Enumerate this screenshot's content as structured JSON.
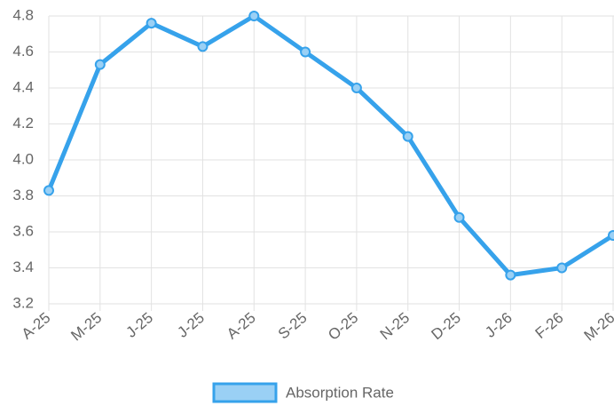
{
  "chart_data": {
    "type": "line",
    "categories": [
      "A-25",
      "M-25",
      "J-25",
      "J-25",
      "A-25",
      "S-25",
      "O-25",
      "N-25",
      "D-25",
      "J-26",
      "F-26",
      "M-26"
    ],
    "series": [
      {
        "name": "Absorption Rate",
        "color": "#36a2eb",
        "fill": "#9ad0f5",
        "values": [
          3.83,
          4.53,
          4.76,
          4.63,
          4.8,
          4.6,
          4.4,
          4.13,
          3.68,
          3.36,
          3.4,
          3.58
        ]
      }
    ],
    "ylim": [
      3.2,
      4.8
    ],
    "yticks": [
      3.2,
      3.4,
      3.6,
      3.8,
      {
        "value": 4,
        "label": "4.0"
      },
      4.2,
      4.4,
      4.6,
      4.8
    ],
    "grid": true,
    "legend": "bottom"
  }
}
